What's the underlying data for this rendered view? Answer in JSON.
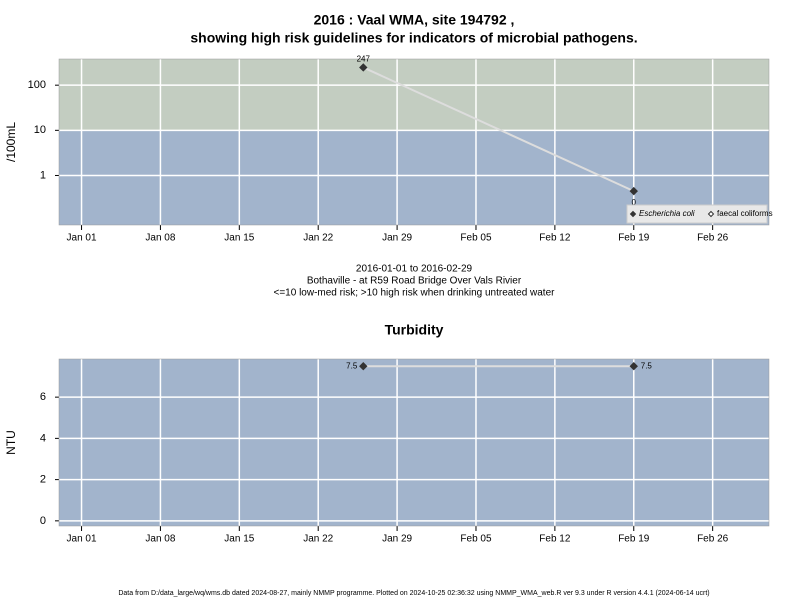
{
  "footer": "Data from D:/data_large/wq/wms.db dated 2024-08-27, mainly NMMP programme. Plotted on 2024-10-25 02:36:32 using NMMP_WMA_web.R ver 9.3 under R version 4.4.1 (2024-06-14 ucrt)",
  "chart_data": [
    {
      "type": "line",
      "title": [
        "2016 : Vaal WMA, site 194792 ,",
        "showing high risk guidelines for indicators of microbial pathogens."
      ],
      "subtitle": [
        "2016-01-01 to 2016-02-29",
        "Bothaville - at R59 Road Bridge Over Vals Rivier",
        "<=10 low-med risk; >10 high risk when drinking untreated water"
      ],
      "y_label": "/100mL",
      "log_y": true,
      "x": [
        "2016-01-26",
        "2016-02-19"
      ],
      "xlim": [
        "2015-12-30",
        "2016-03-02"
      ],
      "xticks": [
        {
          "value": "2016-01-01",
          "label": "Jan 01"
        },
        {
          "value": "2016-01-08",
          "label": "Jan 08"
        },
        {
          "value": "2016-01-15",
          "label": "Jan 15"
        },
        {
          "value": "2016-01-22",
          "label": "Jan 22"
        },
        {
          "value": "2016-01-29",
          "label": "Jan 29"
        },
        {
          "value": "2016-02-05",
          "label": "Feb 05"
        },
        {
          "value": "2016-02-12",
          "label": "Feb 12"
        },
        {
          "value": "2016-02-19",
          "label": "Feb 19"
        },
        {
          "value": "2016-02-26",
          "label": "Feb 26"
        }
      ],
      "ylim": [
        0.08,
        380
      ],
      "yticks": [
        1,
        10,
        100
      ],
      "grid": true,
      "threshold": 10,
      "band_colors": [
        "#a2b4cc",
        "#c3cdc1"
      ],
      "line_color": "#dddddd",
      "legend": "lower right",
      "series": [
        {
          "name": "Escherichia coli",
          "color": "#333333",
          "fill": true,
          "values": [
            247,
            0.45
          ],
          "value_labels": [
            "247",
            "0"
          ]
        },
        {
          "name": "faecal coliforms",
          "color": "#333333",
          "fill": false,
          "values": [
            null,
            null
          ]
        }
      ]
    },
    {
      "type": "line",
      "title": "Turbidity",
      "y_label": "NTU",
      "log_y": false,
      "x": [
        "2016-01-26",
        "2016-02-19"
      ],
      "xlim": [
        "2015-12-30",
        "2016-03-02"
      ],
      "xticks": [
        {
          "value": "2016-01-01",
          "label": "Jan 01"
        },
        {
          "value": "2016-01-08",
          "label": "Jan 08"
        },
        {
          "value": "2016-01-15",
          "label": "Jan 15"
        },
        {
          "value": "2016-01-22",
          "label": "Jan 22"
        },
        {
          "value": "2016-01-29",
          "label": "Jan 29"
        },
        {
          "value": "2016-02-05",
          "label": "Feb 05"
        },
        {
          "value": "2016-02-12",
          "label": "Feb 12"
        },
        {
          "value": "2016-02-19",
          "label": "Feb 19"
        },
        {
          "value": "2016-02-26",
          "label": "Feb 26"
        }
      ],
      "ylim": [
        -0.25,
        7.85
      ],
      "yticks": [
        0,
        2,
        4,
        6
      ],
      "grid": true,
      "band_colors": [
        "#a2b4cc"
      ],
      "line_color": "#dddddd",
      "color": "#333333",
      "values": [
        7.5,
        7.5
      ]
    }
  ]
}
